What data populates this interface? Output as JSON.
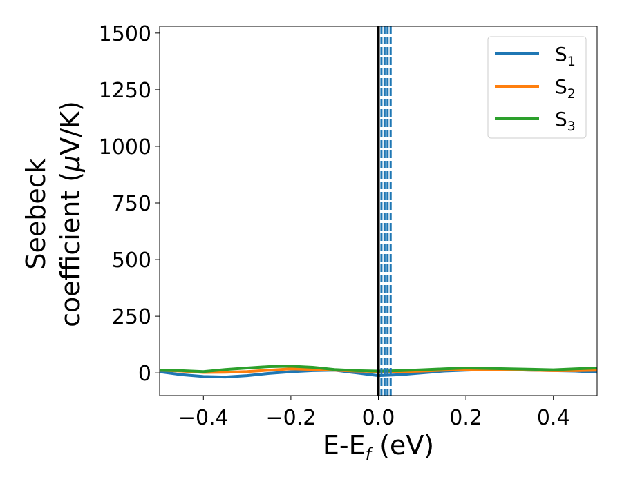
{
  "chart_data": {
    "type": "line",
    "xlabel": "E-E",
    "xlabel_sub": "f",
    "xlabel_unit": " (eV)",
    "ylabel_line1": "Seebeck",
    "ylabel_line2_prefix": "coefficient  (",
    "ylabel_mu": "μ",
    "ylabel_line2_suffix": "V/K)",
    "xlim": [
      -0.5,
      0.5
    ],
    "ylim": [
      -100,
      1530
    ],
    "xticks": [
      -0.4,
      -0.2,
      0.0,
      0.2,
      0.4
    ],
    "xtick_labels": [
      "−0.4",
      "−0.2",
      "0.0",
      "0.2",
      "0.4"
    ],
    "yticks": [
      0,
      250,
      500,
      750,
      1000,
      1250,
      1500
    ],
    "ytick_labels": [
      "0",
      "250",
      "500",
      "750",
      "1000",
      "1250",
      "1500"
    ],
    "grid": false,
    "legend_position": "top-right",
    "vertical_solid_line": {
      "x": 0.0,
      "color": "#000000"
    },
    "vertical_dashed_lines": {
      "x": [
        0.007,
        0.014,
        0.021,
        0.028
      ],
      "color": "#1f77b4"
    },
    "x": [
      -0.5,
      -0.45,
      -0.4,
      -0.35,
      -0.3,
      -0.25,
      -0.2,
      -0.15,
      -0.1,
      -0.05,
      0.0,
      0.05,
      0.1,
      0.15,
      0.2,
      0.25,
      0.3,
      0.35,
      0.4,
      0.45,
      0.5
    ],
    "series": [
      {
        "name": "S",
        "sub": "1",
        "color": "#1f77b4",
        "values": [
          5,
          -8,
          -16,
          -18,
          -12,
          -2,
          5,
          10,
          12,
          0,
          -12,
          -8,
          0,
          8,
          12,
          15,
          14,
          12,
          10,
          8,
          3
        ]
      },
      {
        "name": "S",
        "sub": "2",
        "color": "#ff7f0e",
        "values": [
          12,
          8,
          2,
          3,
          6,
          12,
          18,
          15,
          12,
          8,
          6,
          5,
          8,
          12,
          15,
          15,
          14,
          12,
          10,
          10,
          12
        ]
      },
      {
        "name": "S",
        "sub": "3",
        "color": "#2ca02c",
        "values": [
          12,
          10,
          6,
          15,
          22,
          28,
          30,
          25,
          15,
          10,
          8,
          10,
          14,
          18,
          22,
          20,
          18,
          16,
          14,
          18,
          22
        ]
      }
    ]
  }
}
